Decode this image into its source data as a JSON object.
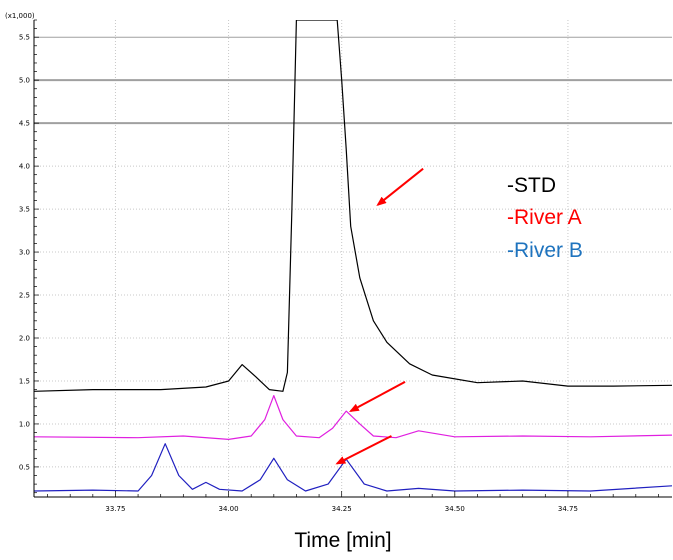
{
  "chart_data": {
    "type": "line",
    "xlabel": "Time [min]",
    "y_multiplier_label": "(x1,000)",
    "xlim": [
      33.57,
      34.98
    ],
    "ylim": [
      0.15,
      5.7
    ],
    "x_ticks": [
      "33.75",
      "34.00",
      "34.25",
      "34.50",
      "34.75"
    ],
    "x_tick_values": [
      33.75,
      34.0,
      34.25,
      34.5,
      34.75
    ],
    "y_ticks": [
      "0.5",
      "1.0",
      "1.5",
      "2.0",
      "2.5",
      "3.0",
      "3.5",
      "4.0",
      "4.5",
      "5.0",
      "5.5"
    ],
    "y_tick_values": [
      0.5,
      1.0,
      1.5,
      2.0,
      2.5,
      3.0,
      3.5,
      4.0,
      4.5,
      5.0,
      5.5
    ],
    "grid": true,
    "legend_position": "right",
    "series": [
      {
        "name": "-STD",
        "color": "#000000",
        "x": [
          33.57,
          33.7,
          33.85,
          33.95,
          34.0,
          34.03,
          34.06,
          34.09,
          34.12,
          34.13,
          34.14,
          34.15,
          34.16,
          34.2,
          34.23,
          34.24,
          34.25,
          34.26,
          34.27,
          34.29,
          34.32,
          34.35,
          34.4,
          34.45,
          34.55,
          34.65,
          34.75,
          34.85,
          34.98
        ],
        "y": [
          1.38,
          1.4,
          1.4,
          1.43,
          1.5,
          1.69,
          1.55,
          1.4,
          1.38,
          1.6,
          3.5,
          5.7,
          5.7,
          5.7,
          5.7,
          5.7,
          5.0,
          4.2,
          3.3,
          2.7,
          2.2,
          1.95,
          1.7,
          1.57,
          1.48,
          1.5,
          1.44,
          1.44,
          1.45
        ]
      },
      {
        "name": "-River A",
        "color": "#e020e0",
        "x": [
          33.57,
          33.8,
          33.9,
          34.0,
          34.05,
          34.08,
          34.1,
          34.12,
          34.15,
          34.2,
          34.23,
          34.26,
          34.29,
          34.32,
          34.37,
          34.42,
          34.5,
          34.65,
          34.8,
          34.98
        ],
        "y": [
          0.85,
          0.84,
          0.86,
          0.82,
          0.86,
          1.05,
          1.33,
          1.05,
          0.86,
          0.84,
          0.95,
          1.15,
          1.0,
          0.86,
          0.84,
          0.92,
          0.85,
          0.86,
          0.85,
          0.87
        ]
      },
      {
        "name": "-River B",
        "color": "#2020c0",
        "x": [
          33.57,
          33.7,
          33.8,
          33.83,
          33.86,
          33.89,
          33.92,
          33.95,
          33.98,
          34.03,
          34.07,
          34.1,
          34.13,
          34.17,
          34.22,
          34.26,
          34.3,
          34.35,
          34.42,
          34.5,
          34.65,
          34.8,
          34.98
        ],
        "y": [
          0.22,
          0.23,
          0.22,
          0.4,
          0.77,
          0.4,
          0.24,
          0.32,
          0.24,
          0.22,
          0.35,
          0.6,
          0.35,
          0.22,
          0.3,
          0.59,
          0.3,
          0.22,
          0.25,
          0.22,
          0.23,
          0.22,
          0.28
        ]
      }
    ],
    "legend": [
      {
        "label": "-STD",
        "color": "#000000"
      },
      {
        "label": "-River A",
        "color": "#ff0000"
      },
      {
        "label": "-River B",
        "color": "#1e73be"
      }
    ],
    "annotations": [
      {
        "type": "arrow",
        "color": "#ff0000",
        "from": [
          34.43,
          3.97
        ],
        "to": [
          34.33,
          3.55
        ]
      },
      {
        "type": "arrow",
        "color": "#ff0000",
        "from": [
          34.39,
          1.49
        ],
        "to": [
          34.27,
          1.15
        ]
      },
      {
        "type": "arrow",
        "color": "#ff0000",
        "from": [
          34.36,
          0.86
        ],
        "to": [
          34.24,
          0.54
        ]
      }
    ]
  }
}
